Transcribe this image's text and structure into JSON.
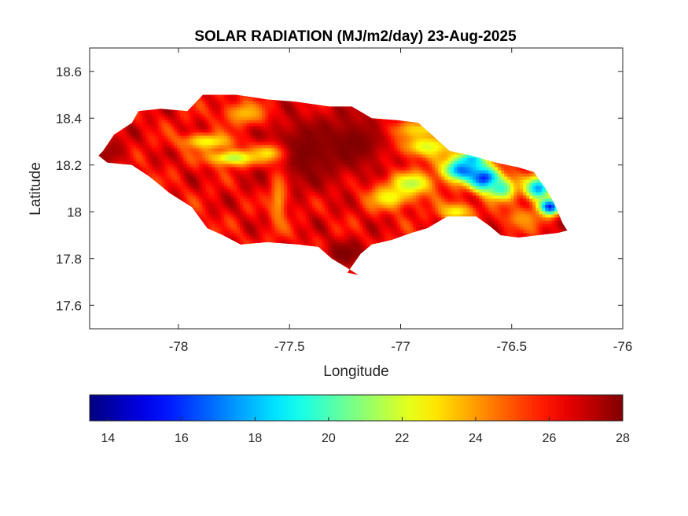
{
  "chart_data": {
    "type": "heatmap",
    "title": "SOLAR RADIATION (MJ/m2/day) 23-Aug-2025",
    "xlabel": "Longitude",
    "ylabel": "Latitude",
    "xlim": [
      -78.4,
      -76.0
    ],
    "ylim": [
      17.5,
      18.7
    ],
    "xticks": [
      -78,
      -77.5,
      -77,
      -76.5,
      -76
    ],
    "xtick_labels": [
      "-78",
      "-77.5",
      "-77",
      "-76.5",
      "-76"
    ],
    "yticks": [
      17.6,
      17.8,
      18.0,
      18.2,
      18.4,
      18.6
    ],
    "ytick_labels": [
      "17.6",
      "17.8",
      "18",
      "18.2",
      "18.4",
      "18.6"
    ],
    "colormap": "jet",
    "colorbar": {
      "range": [
        13.5,
        28
      ],
      "ticks": [
        14,
        16,
        18,
        20,
        22,
        24,
        26,
        28
      ],
      "tick_labels": [
        "14",
        "16",
        "18",
        "20",
        "22",
        "24",
        "26",
        "28"
      ],
      "placement": "bottom"
    },
    "region_outline_lonlat": [
      [
        -78.34,
        18.26
      ],
      [
        -78.29,
        18.33
      ],
      [
        -78.21,
        18.38
      ],
      [
        -78.18,
        18.43
      ],
      [
        -78.08,
        18.44
      ],
      [
        -77.96,
        18.43
      ],
      [
        -77.92,
        18.47
      ],
      [
        -77.89,
        18.5
      ],
      [
        -77.74,
        18.5
      ],
      [
        -77.6,
        18.48
      ],
      [
        -77.47,
        18.47
      ],
      [
        -77.32,
        18.45
      ],
      [
        -77.22,
        18.45
      ],
      [
        -77.13,
        18.4
      ],
      [
        -77.0,
        18.39
      ],
      [
        -76.92,
        18.38
      ],
      [
        -76.86,
        18.33
      ],
      [
        -76.78,
        18.26
      ],
      [
        -76.68,
        18.24
      ],
      [
        -76.57,
        18.21
      ],
      [
        -76.47,
        18.19
      ],
      [
        -76.4,
        18.17
      ],
      [
        -76.34,
        18.09
      ],
      [
        -76.31,
        18.04
      ],
      [
        -76.27,
        17.95
      ],
      [
        -76.25,
        17.92
      ],
      [
        -76.29,
        17.91
      ],
      [
        -76.38,
        17.9
      ],
      [
        -76.47,
        17.89
      ],
      [
        -76.55,
        17.9
      ],
      [
        -76.6,
        17.94
      ],
      [
        -76.66,
        17.98
      ],
      [
        -76.79,
        17.98
      ],
      [
        -76.88,
        17.93
      ],
      [
        -76.95,
        17.91
      ],
      [
        -77.04,
        17.88
      ],
      [
        -77.13,
        17.86
      ],
      [
        -77.18,
        17.82
      ],
      [
        -77.21,
        17.78
      ],
      [
        -77.24,
        17.74
      ],
      [
        -77.19,
        17.73
      ],
      [
        -77.24,
        17.76
      ],
      [
        -77.31,
        17.8
      ],
      [
        -77.37,
        17.85
      ],
      [
        -77.46,
        17.86
      ],
      [
        -77.6,
        17.87
      ],
      [
        -77.72,
        17.86
      ],
      [
        -77.8,
        17.9
      ],
      [
        -77.87,
        17.93
      ],
      [
        -77.94,
        18.02
      ],
      [
        -78.04,
        18.08
      ],
      [
        -78.13,
        18.15
      ],
      [
        -78.21,
        18.2
      ],
      [
        -78.32,
        18.21
      ],
      [
        -78.36,
        18.24
      ]
    ],
    "base_value": 26.3,
    "value_features": [
      {
        "lon": -77.45,
        "lat": 18.25,
        "value": 28.0,
        "rx": 0.22,
        "ry": 0.16
      },
      {
        "lon": -77.2,
        "lat": 18.3,
        "value": 28.0,
        "rx": 0.18,
        "ry": 0.12
      },
      {
        "lon": -77.25,
        "lat": 17.82,
        "value": 28.0,
        "rx": 0.1,
        "ry": 0.06
      },
      {
        "lon": -78.3,
        "lat": 18.26,
        "value": 27.5,
        "rx": 0.08,
        "ry": 0.06
      },
      {
        "lon": -77.87,
        "lat": 18.3,
        "value": 22.5,
        "rx": 0.12,
        "ry": 0.035
      },
      {
        "lon": -77.75,
        "lat": 18.23,
        "value": 21.5,
        "rx": 0.12,
        "ry": 0.035
      },
      {
        "lon": -77.6,
        "lat": 18.25,
        "value": 22.8,
        "rx": 0.07,
        "ry": 0.04
      },
      {
        "lon": -77.7,
        "lat": 18.42,
        "value": 23.5,
        "rx": 0.1,
        "ry": 0.05
      },
      {
        "lon": -77.55,
        "lat": 18.05,
        "value": 24.0,
        "rx": 0.04,
        "ry": 0.14
      },
      {
        "lon": -77.05,
        "lat": 18.06,
        "value": 22.5,
        "rx": 0.1,
        "ry": 0.05
      },
      {
        "lon": -76.95,
        "lat": 18.12,
        "value": 21.5,
        "rx": 0.1,
        "ry": 0.05
      },
      {
        "lon": -76.88,
        "lat": 18.28,
        "value": 22.0,
        "rx": 0.12,
        "ry": 0.05
      },
      {
        "lon": -76.9,
        "lat": 18.35,
        "value": 23.0,
        "rx": 0.14,
        "ry": 0.04
      },
      {
        "lon": -76.72,
        "lat": 18.18,
        "value": 16.5,
        "rx": 0.09,
        "ry": 0.05
      },
      {
        "lon": -76.62,
        "lat": 18.14,
        "value": 15.0,
        "rx": 0.07,
        "ry": 0.05
      },
      {
        "lon": -76.68,
        "lat": 18.22,
        "value": 18.0,
        "rx": 0.06,
        "ry": 0.04
      },
      {
        "lon": -76.55,
        "lat": 18.1,
        "value": 19.5,
        "rx": 0.07,
        "ry": 0.05
      },
      {
        "lon": -76.38,
        "lat": 18.1,
        "value": 17.5,
        "rx": 0.06,
        "ry": 0.05
      },
      {
        "lon": -76.33,
        "lat": 18.02,
        "value": 15.0,
        "rx": 0.05,
        "ry": 0.035
      },
      {
        "lon": -76.75,
        "lat": 18.0,
        "value": 22.5,
        "rx": 0.08,
        "ry": 0.04
      },
      {
        "lon": -76.45,
        "lat": 17.97,
        "value": 24.0,
        "rx": 0.09,
        "ry": 0.05
      }
    ]
  }
}
